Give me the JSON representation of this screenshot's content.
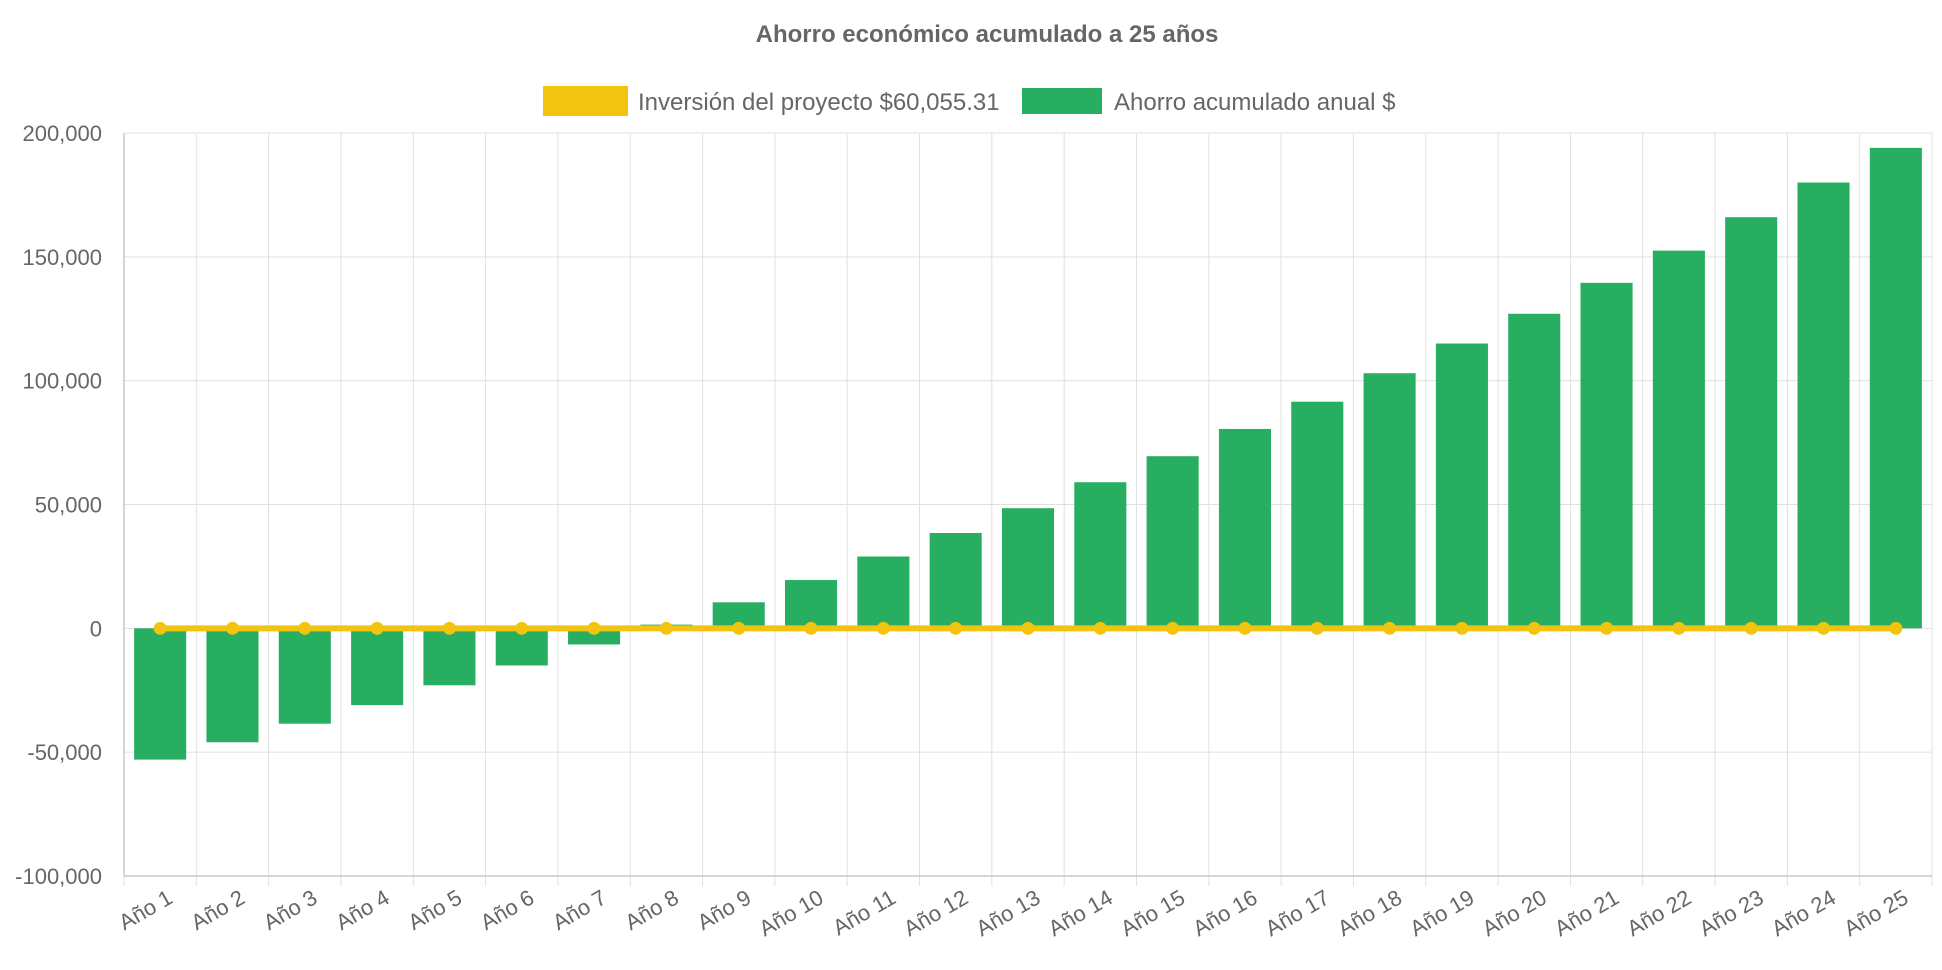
{
  "chart_data": {
    "type": "bar",
    "title": "Ahorro económico acumulado a 25 años",
    "categories": [
      "Año 1",
      "Año 2",
      "Año 3",
      "Año 4",
      "Año 5",
      "Año 6",
      "Año 7",
      "Año 8",
      "Año 9",
      "Año 10",
      "Año 11",
      "Año 12",
      "Año 13",
      "Año 14",
      "Año 15",
      "Año 16",
      "Año 17",
      "Año 18",
      "Año 19",
      "Año 20",
      "Año 21",
      "Año 22",
      "Año 23",
      "Año 24",
      "Año 25"
    ],
    "series": [
      {
        "name": "Inversión del proyecto $60,055.31",
        "type": "line",
        "color": "#f2c40f",
        "values": [
          0,
          0,
          0,
          0,
          0,
          0,
          0,
          0,
          0,
          0,
          0,
          0,
          0,
          0,
          0,
          0,
          0,
          0,
          0,
          0,
          0,
          0,
          0,
          0,
          0
        ]
      },
      {
        "name": "Ahorro acumulado anual $",
        "type": "bar",
        "color": "#27ae60",
        "values": [
          -53000,
          -46000,
          -38500,
          -31000,
          -23000,
          -15000,
          -6500,
          1500,
          10500,
          19500,
          29000,
          38500,
          48500,
          59000,
          69500,
          80500,
          91500,
          103000,
          115000,
          127000,
          139500,
          152500,
          166000,
          180000,
          194000
        ]
      }
    ],
    "ylim": [
      -100000,
      200000
    ],
    "yticks": [
      -100000,
      -50000,
      0,
      50000,
      100000,
      150000,
      200000
    ],
    "ytick_labels": [
      "-100,000",
      "-50,000",
      "0",
      "50,000",
      "100,000",
      "150,000",
      "200,000"
    ],
    "grid": true,
    "legend_position": "top-center"
  }
}
